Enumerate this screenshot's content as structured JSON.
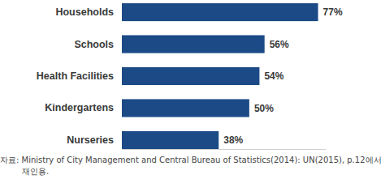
{
  "chart_data": {
    "type": "bar",
    "orientation": "horizontal",
    "categories": [
      "Households",
      "Schools",
      "Health Facilities",
      "Kindergartens",
      "Nurseries"
    ],
    "values": [
      77,
      56,
      54,
      50,
      38
    ],
    "value_labels": [
      "77%",
      "56%",
      "54%",
      "50%",
      "38%"
    ],
    "data_labels": true,
    "color": "#1c4a87",
    "xlim": [
      0,
      80
    ],
    "tick_labels": false,
    "grid": false,
    "annotations": [
      "자료: Ministry of City Management and Central Bureau of Statistics(2014): UN(2015), p.12에서",
      "재인용."
    ]
  }
}
